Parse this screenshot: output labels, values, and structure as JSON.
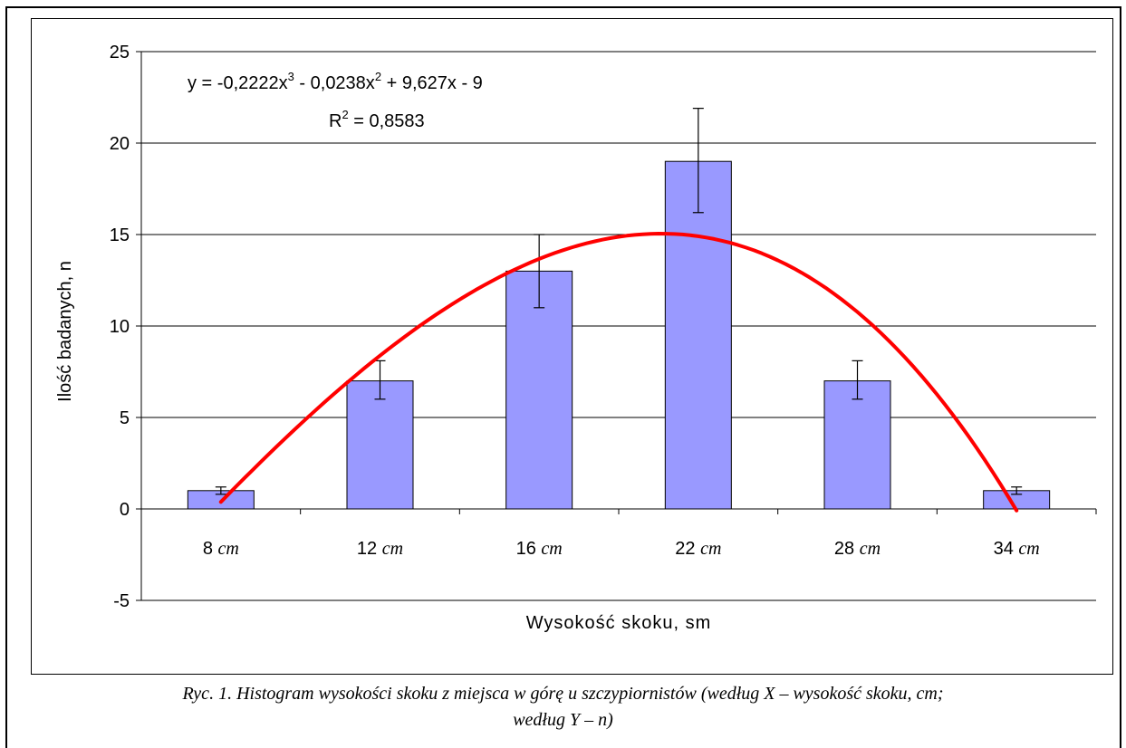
{
  "chart_data": {
    "type": "bar",
    "categories": [
      "8",
      "12",
      "16",
      "22",
      "28",
      "34"
    ],
    "category_unit": "cm",
    "values": [
      1,
      7,
      13,
      19,
      7,
      1
    ],
    "error_bars": [
      {
        "low": 0.8,
        "high": 1.2
      },
      {
        "low": 6.0,
        "high": 8.1
      },
      {
        "low": 11.0,
        "high": 15.0
      },
      {
        "low": 16.2,
        "high": 21.9
      },
      {
        "low": 6.0,
        "high": 8.1
      },
      {
        "low": 0.8,
        "high": 1.2
      }
    ],
    "trendline": {
      "type": "polynomial",
      "coefficients": [
        -0.2222,
        -0.0238,
        9.627,
        -9
      ],
      "color": "#ff0000",
      "equation_label": {
        "prefix": "y = -0,2222x",
        "exp3": "3",
        "mid": " - 0,0238x",
        "exp2": "2",
        "suffix": " + 9,627x - 9"
      },
      "r2_label": {
        "prefix": "R",
        "exp": "2",
        "suffix": " = 0,8583"
      }
    },
    "ylabel": "Ilość badanych, n",
    "xlabel": "Wysokość skoku, sm",
    "ylim": [
      -5,
      25
    ],
    "yticks": [
      "-5",
      "0",
      "5",
      "10",
      "15",
      "20",
      "25"
    ],
    "grid": true,
    "bar_color": "#9999ff"
  },
  "caption": {
    "line1": "Ryc. 1. Histogram wysokości skoku z miejsca w górę u szczypiornistów (według X – wysokość skoku, cm;",
    "line2": "według Y – n)"
  }
}
